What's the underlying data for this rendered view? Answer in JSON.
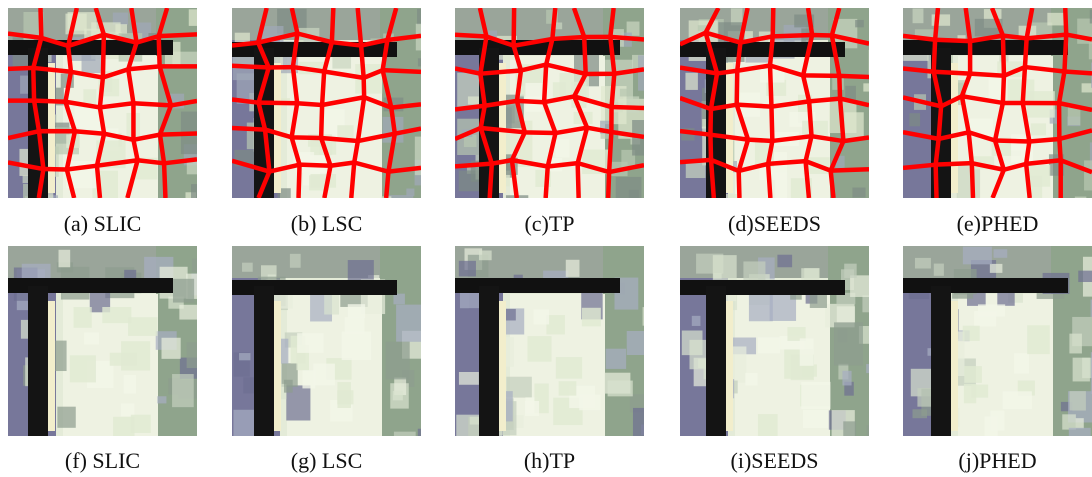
{
  "figure": {
    "captions": [
      "(a) SLIC",
      "(b) LSC",
      "(c)TP",
      "(d)SEEDS",
      "(e)PHED",
      "(f) SLIC",
      "(g) LSC",
      "(h)TP",
      "(i)SEEDS",
      "(j)PHED"
    ]
  }
}
